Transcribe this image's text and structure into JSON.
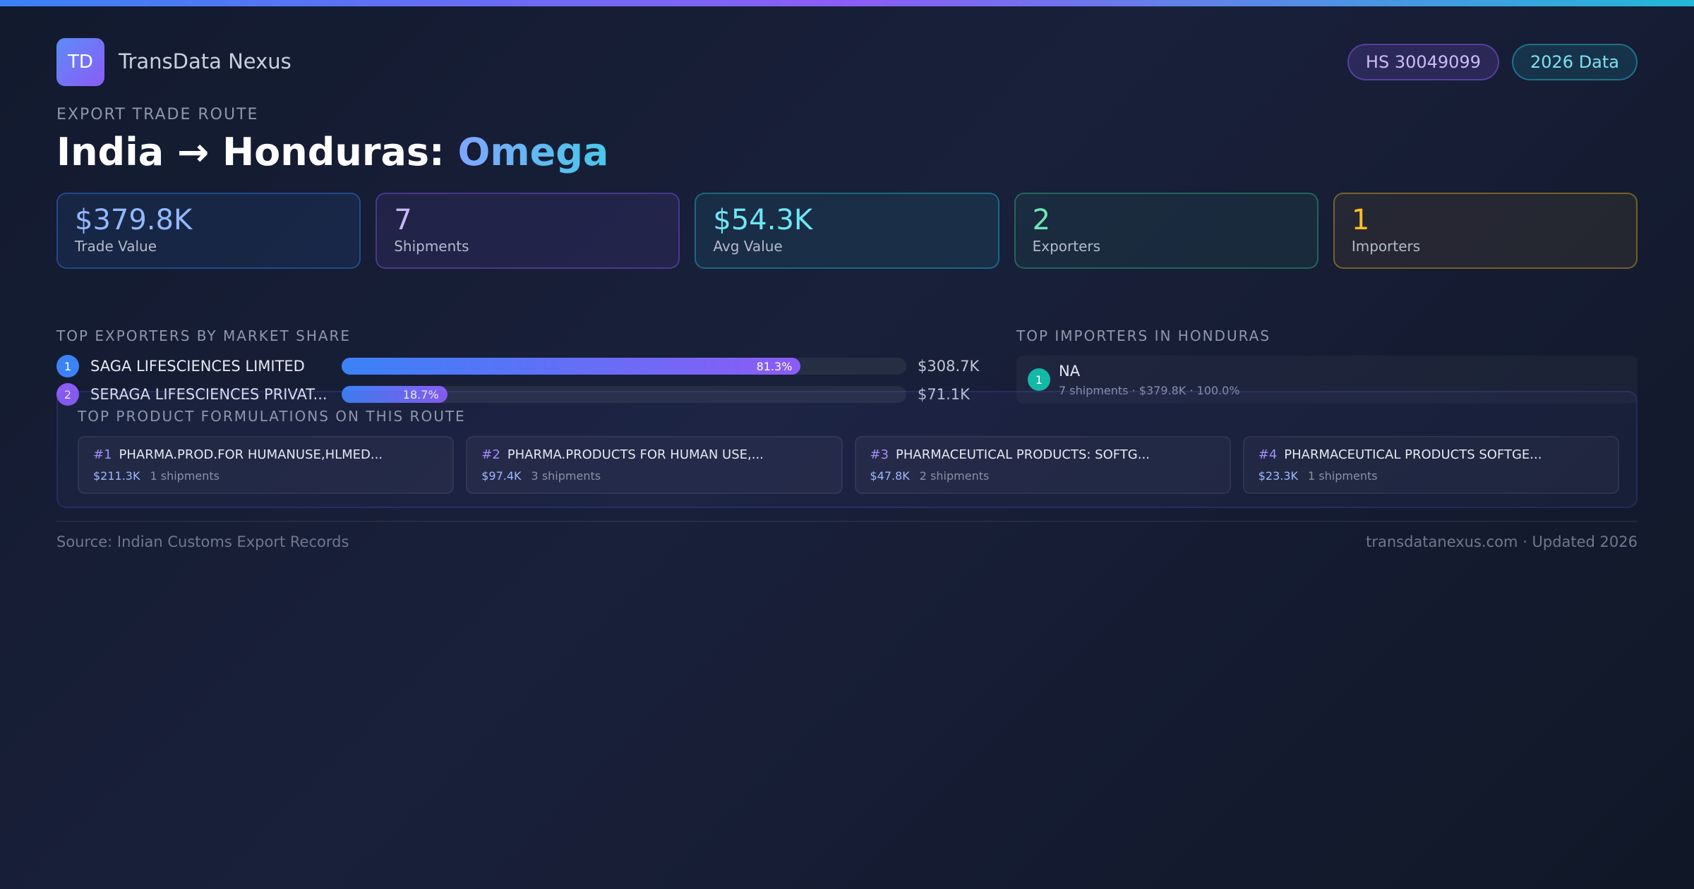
{
  "brand": {
    "logo": "TD",
    "name": "TransData Nexus"
  },
  "tags": {
    "hs_code": "HS 30049099",
    "year": "2026 Data"
  },
  "route": {
    "eyebrow": "EXPORT TRADE ROUTE",
    "title_prefix": "India → Honduras: ",
    "title_highlight": "Omega"
  },
  "kpis": [
    {
      "value": "$379.8K",
      "label": "Trade Value",
      "color": "#93b8ff"
    },
    {
      "value": "7",
      "label": "Shipments",
      "color": "#c7b8f7"
    },
    {
      "value": "$54.3K",
      "label": "Avg Value",
      "color": "#6ee7f5"
    },
    {
      "value": "2",
      "label": "Exporters",
      "color": "#6ee7b7"
    },
    {
      "value": "1",
      "label": "Importers",
      "color": "#fbbf24"
    }
  ],
  "exporters": {
    "heading": "TOP EXPORTERS BY MARKET SHARE",
    "items": [
      {
        "rank": "1",
        "name": "SAGA LIFESCIENCES LIMITED",
        "share": 81.3,
        "share_label": "81.3%",
        "value": "$308.7K",
        "rank_color": "#3b82f6"
      },
      {
        "rank": "2",
        "name": "SERAGA LIFESCIENCES PRIVAT...",
        "share": 18.7,
        "share_label": "18.7%",
        "value": "$71.1K",
        "rank_color": "#8b5cf6"
      }
    ]
  },
  "importers": {
    "heading": "TOP IMPORTERS IN HONDURAS",
    "items": [
      {
        "rank": "1",
        "name": "NA",
        "meta": "7 shipments · $379.8K · 100.0%"
      }
    ]
  },
  "products": {
    "heading": "TOP PRODUCT FORMULATIONS ON THIS ROUTE",
    "items": [
      {
        "num": "#1",
        "title": "PHARMA.PROD.FOR HUMANUSE,HLMED...",
        "value": "$211.3K",
        "shipments": "1 shipments"
      },
      {
        "num": "#2",
        "title": "PHARMA.PRODUCTS FOR HUMAN USE,...",
        "value": "$97.4K",
        "shipments": "3 shipments"
      },
      {
        "num": "#3",
        "title": "PHARMACEUTICAL PRODUCTS: SOFTG...",
        "value": "$47.8K",
        "shipments": "2 shipments"
      },
      {
        "num": "#4",
        "title": "PHARMACEUTICAL PRODUCTS SOFTGE...",
        "value": "$23.3K",
        "shipments": "1 shipments"
      }
    ]
  },
  "footer": {
    "source": "Source: Indian Customs Export Records",
    "site": "transdatanexus.com · Updated 2026"
  }
}
